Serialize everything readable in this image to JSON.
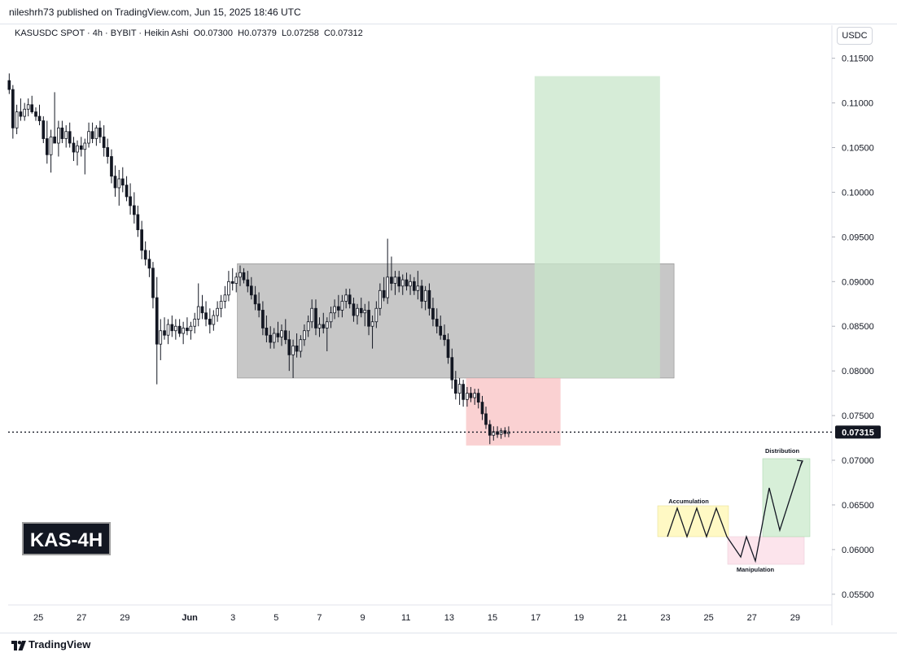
{
  "header": {
    "publisher": "nileshrh73 published on TradingView.com, Jun 15, 2025 18:46 UTC",
    "symbol_line": "KASUSDC SPOT · 4h · BYBIT · Heikin Ashi",
    "ohlc": {
      "open_label": "O",
      "open": "0.07300",
      "high_label": "H",
      "high": "0.07379",
      "low_label": "L",
      "low": "0.07258",
      "close_label": "C",
      "close": "0.07312"
    },
    "currency": "USDC"
  },
  "badge": "KAS-4H",
  "footer": {
    "brand": "TradingView",
    "logo_icon": "tradingview-logo-icon"
  },
  "chart_data": {
    "type": "candlestick",
    "candle_style": "Heikin Ashi",
    "timeframe": "4h",
    "x_tick_labels": [
      "25",
      "27",
      "29",
      "Jun",
      "3",
      "5",
      "7",
      "9",
      "11",
      "13",
      "15",
      "17",
      "19",
      "21",
      "23",
      "25",
      "27",
      "29"
    ],
    "x_tick_days": [
      -7,
      -5,
      -3,
      0,
      2,
      4,
      6,
      8,
      10,
      12,
      14,
      16,
      18,
      20,
      22,
      24,
      26,
      28
    ],
    "x_range_days": [
      -8.4,
      29.7
    ],
    "y_tick_labels": [
      "0.11500",
      "0.11000",
      "0.10500",
      "0.10000",
      "0.09500",
      "0.09000",
      "0.08500",
      "0.08000",
      "0.07500",
      "0.07000",
      "0.06500",
      "0.06000",
      "0.05500"
    ],
    "y_range": [
      0.0538,
      0.1187
    ],
    "last_price": "0.07315",
    "last_price_value": 0.07315,
    "colors": {
      "candle": "#131722",
      "range_box": "#b2b2b2",
      "target_box": "#c8e6c9",
      "stop_box": "#f7b4b6",
      "price_label_bg": "#131722"
    },
    "zones": [
      {
        "kind": "consolidation-range",
        "x_start_day": 2.2,
        "x_end_day": 22.4,
        "y_low": 0.0792,
        "y_high": 0.092
      },
      {
        "kind": "target-zone",
        "x_start_day": 15.95,
        "x_end_day": 21.75,
        "y_low": 0.0792,
        "y_high": 0.113
      },
      {
        "kind": "stop-zone",
        "x_start_day": 12.78,
        "x_end_day": 17.15,
        "y_low": 0.07165,
        "y_high": 0.0792
      }
    ],
    "candles": [
      {
        "t": -8.35,
        "o": 0.1125,
        "h": 0.1133,
        "l": 0.111,
        "c": 0.1115
      },
      {
        "t": -8.18,
        "o": 0.1115,
        "h": 0.112,
        "l": 0.106,
        "c": 0.1072
      },
      {
        "t": -8.0,
        "o": 0.1072,
        "h": 0.1098,
        "l": 0.1065,
        "c": 0.109
      },
      {
        "t": -7.82,
        "o": 0.109,
        "h": 0.1105,
        "l": 0.108,
        "c": 0.1085
      },
      {
        "t": -7.64,
        "o": 0.1085,
        "h": 0.11,
        "l": 0.108,
        "c": 0.1093
      },
      {
        "t": -7.47,
        "o": 0.1093,
        "h": 0.1105,
        "l": 0.1085,
        "c": 0.1098
      },
      {
        "t": -7.3,
        "o": 0.1098,
        "h": 0.1108,
        "l": 0.1088,
        "c": 0.109
      },
      {
        "t": -7.12,
        "o": 0.109,
        "h": 0.1095,
        "l": 0.108,
        "c": 0.1085
      },
      {
        "t": -6.95,
        "o": 0.1085,
        "h": 0.1098,
        "l": 0.1075,
        "c": 0.108
      },
      {
        "t": -6.77,
        "o": 0.108,
        "h": 0.1085,
        "l": 0.1055,
        "c": 0.106
      },
      {
        "t": -6.6,
        "o": 0.106,
        "h": 0.108,
        "l": 0.1032,
        "c": 0.1042
      },
      {
        "t": -6.42,
        "o": 0.1042,
        "h": 0.107,
        "l": 0.1022,
        "c": 0.1062
      },
      {
        "t": -6.25,
        "o": 0.1062,
        "h": 0.1112,
        "l": 0.1055,
        "c": 0.1055
      },
      {
        "t": -6.07,
        "o": 0.1055,
        "h": 0.108,
        "l": 0.104,
        "c": 0.1072
      },
      {
        "t": -5.9,
        "o": 0.1072,
        "h": 0.108,
        "l": 0.1055,
        "c": 0.106
      },
      {
        "t": -5.72,
        "o": 0.106,
        "h": 0.1075,
        "l": 0.105,
        "c": 0.1068
      },
      {
        "t": -5.55,
        "o": 0.1068,
        "h": 0.1078,
        "l": 0.105,
        "c": 0.1055
      },
      {
        "t": -5.37,
        "o": 0.1055,
        "h": 0.1062,
        "l": 0.1035,
        "c": 0.1045
      },
      {
        "t": -5.2,
        "o": 0.1045,
        "h": 0.1058,
        "l": 0.103,
        "c": 0.1052
      },
      {
        "t": -5.02,
        "o": 0.1052,
        "h": 0.1062,
        "l": 0.104,
        "c": 0.1048
      },
      {
        "t": -4.85,
        "o": 0.1048,
        "h": 0.106,
        "l": 0.102,
        "c": 0.1055
      },
      {
        "t": -4.67,
        "o": 0.1055,
        "h": 0.1078,
        "l": 0.105,
        "c": 0.1068
      },
      {
        "t": -4.5,
        "o": 0.1068,
        "h": 0.1078,
        "l": 0.1055,
        "c": 0.106
      },
      {
        "t": -4.32,
        "o": 0.106,
        "h": 0.1075,
        "l": 0.1052,
        "c": 0.1072
      },
      {
        "t": -4.15,
        "o": 0.1072,
        "h": 0.108,
        "l": 0.1055,
        "c": 0.1062
      },
      {
        "t": -3.97,
        "o": 0.1062,
        "h": 0.1075,
        "l": 0.104,
        "c": 0.105
      },
      {
        "t": -3.8,
        "o": 0.105,
        "h": 0.106,
        "l": 0.1032,
        "c": 0.104
      },
      {
        "t": -3.62,
        "o": 0.104,
        "h": 0.1048,
        "l": 0.101,
        "c": 0.1018
      },
      {
        "t": -3.45,
        "o": 0.1018,
        "h": 0.103,
        "l": 0.0995,
        "c": 0.1005
      },
      {
        "t": -3.27,
        "o": 0.1005,
        "h": 0.1025,
        "l": 0.0985,
        "c": 0.1015
      },
      {
        "t": -3.1,
        "o": 0.1015,
        "h": 0.1028,
        "l": 0.1,
        "c": 0.1008
      },
      {
        "t": -2.92,
        "o": 0.1008,
        "h": 0.1018,
        "l": 0.099,
        "c": 0.0995
      },
      {
        "t": -2.75,
        "o": 0.0995,
        "h": 0.101,
        "l": 0.0975,
        "c": 0.0985
      },
      {
        "t": -2.57,
        "o": 0.0985,
        "h": 0.1,
        "l": 0.0965,
        "c": 0.0975
      },
      {
        "t": -2.4,
        "o": 0.0975,
        "h": 0.0985,
        "l": 0.095,
        "c": 0.0958
      },
      {
        "t": -2.22,
        "o": 0.0958,
        "h": 0.0968,
        "l": 0.0925,
        "c": 0.0935
      },
      {
        "t": -2.05,
        "o": 0.0935,
        "h": 0.0945,
        "l": 0.0918,
        "c": 0.0925
      },
      {
        "t": -1.87,
        "o": 0.0925,
        "h": 0.0935,
        "l": 0.0905,
        "c": 0.0915
      },
      {
        "t": -1.7,
        "o": 0.0915,
        "h": 0.0922,
        "l": 0.087,
        "c": 0.0882
      },
      {
        "t": -1.52,
        "o": 0.0882,
        "h": 0.0905,
        "l": 0.0785,
        "c": 0.083
      },
      {
        "t": -1.35,
        "o": 0.083,
        "h": 0.0858,
        "l": 0.0812,
        "c": 0.0845
      },
      {
        "t": -1.17,
        "o": 0.0845,
        "h": 0.086,
        "l": 0.0835,
        "c": 0.084
      },
      {
        "t": -1.0,
        "o": 0.084,
        "h": 0.0858,
        "l": 0.083,
        "c": 0.0852
      },
      {
        "t": -0.82,
        "o": 0.0852,
        "h": 0.0862,
        "l": 0.0838,
        "c": 0.0845
      },
      {
        "t": -0.65,
        "o": 0.0845,
        "h": 0.0858,
        "l": 0.0835,
        "c": 0.085
      },
      {
        "t": -0.47,
        "o": 0.085,
        "h": 0.0858,
        "l": 0.0838,
        "c": 0.0842
      },
      {
        "t": -0.3,
        "o": 0.0842,
        "h": 0.0855,
        "l": 0.083,
        "c": 0.0848
      },
      {
        "t": -0.12,
        "o": 0.0848,
        "h": 0.086,
        "l": 0.084,
        "c": 0.0845
      },
      {
        "t": 0.05,
        "o": 0.0845,
        "h": 0.0855,
        "l": 0.0835,
        "c": 0.085
      },
      {
        "t": 0.23,
        "o": 0.085,
        "h": 0.0865,
        "l": 0.0842,
        "c": 0.0858
      },
      {
        "t": 0.4,
        "o": 0.0858,
        "h": 0.0898,
        "l": 0.085,
        "c": 0.0872
      },
      {
        "t": 0.58,
        "o": 0.0872,
        "h": 0.0885,
        "l": 0.0858,
        "c": 0.0865
      },
      {
        "t": 0.75,
        "o": 0.0865,
        "h": 0.0878,
        "l": 0.085,
        "c": 0.0858
      },
      {
        "t": 0.93,
        "o": 0.0858,
        "h": 0.087,
        "l": 0.0842,
        "c": 0.0852
      },
      {
        "t": 1.1,
        "o": 0.0852,
        "h": 0.0868,
        "l": 0.0845,
        "c": 0.0862
      },
      {
        "t": 1.28,
        "o": 0.0862,
        "h": 0.0878,
        "l": 0.0855,
        "c": 0.087
      },
      {
        "t": 1.45,
        "o": 0.087,
        "h": 0.0885,
        "l": 0.086,
        "c": 0.0878
      },
      {
        "t": 1.63,
        "o": 0.0878,
        "h": 0.0895,
        "l": 0.087,
        "c": 0.0885
      },
      {
        "t": 1.8,
        "o": 0.0885,
        "h": 0.0912,
        "l": 0.0878,
        "c": 0.09
      },
      {
        "t": 1.98,
        "o": 0.09,
        "h": 0.0915,
        "l": 0.089,
        "c": 0.0898
      },
      {
        "t": 2.15,
        "o": 0.0898,
        "h": 0.091,
        "l": 0.0888,
        "c": 0.0905
      },
      {
        "t": 2.33,
        "o": 0.0905,
        "h": 0.0918,
        "l": 0.0895,
        "c": 0.091
      },
      {
        "t": 2.5,
        "o": 0.091,
        "h": 0.0915,
        "l": 0.0898,
        "c": 0.0902
      },
      {
        "t": 2.68,
        "o": 0.0902,
        "h": 0.0912,
        "l": 0.0888,
        "c": 0.0895
      },
      {
        "t": 2.85,
        "o": 0.0895,
        "h": 0.0905,
        "l": 0.088,
        "c": 0.0885
      },
      {
        "t": 3.03,
        "o": 0.0885,
        "h": 0.0895,
        "l": 0.0868,
        "c": 0.0875
      },
      {
        "t": 3.2,
        "o": 0.0875,
        "h": 0.0888,
        "l": 0.086,
        "c": 0.0868
      },
      {
        "t": 3.38,
        "o": 0.0868,
        "h": 0.0878,
        "l": 0.084,
        "c": 0.0848
      },
      {
        "t": 3.55,
        "o": 0.0848,
        "h": 0.0862,
        "l": 0.0832,
        "c": 0.084
      },
      {
        "t": 3.73,
        "o": 0.084,
        "h": 0.085,
        "l": 0.0825,
        "c": 0.0832
      },
      {
        "t": 3.9,
        "o": 0.0832,
        "h": 0.0848,
        "l": 0.0825,
        "c": 0.0842
      },
      {
        "t": 4.08,
        "o": 0.0842,
        "h": 0.0855,
        "l": 0.0832,
        "c": 0.0838
      },
      {
        "t": 4.25,
        "o": 0.0838,
        "h": 0.0852,
        "l": 0.0828,
        "c": 0.0845
      },
      {
        "t": 4.43,
        "o": 0.0845,
        "h": 0.0858,
        "l": 0.083,
        "c": 0.0835
      },
      {
        "t": 4.6,
        "o": 0.0835,
        "h": 0.0845,
        "l": 0.08,
        "c": 0.0818
      },
      {
        "t": 4.78,
        "o": 0.0818,
        "h": 0.0835,
        "l": 0.0792,
        "c": 0.0828
      },
      {
        "t": 4.95,
        "o": 0.0828,
        "h": 0.0842,
        "l": 0.0815,
        "c": 0.0822
      },
      {
        "t": 5.13,
        "o": 0.0822,
        "h": 0.084,
        "l": 0.0815,
        "c": 0.0835
      },
      {
        "t": 5.3,
        "o": 0.0835,
        "h": 0.0852,
        "l": 0.0828,
        "c": 0.0845
      },
      {
        "t": 5.48,
        "o": 0.0845,
        "h": 0.0862,
        "l": 0.0838,
        "c": 0.0855
      },
      {
        "t": 5.65,
        "o": 0.0855,
        "h": 0.088,
        "l": 0.0848,
        "c": 0.087
      },
      {
        "t": 5.83,
        "o": 0.087,
        "h": 0.088,
        "l": 0.084,
        "c": 0.0848
      },
      {
        "t": 6.0,
        "o": 0.0848,
        "h": 0.086,
        "l": 0.0838,
        "c": 0.0852
      },
      {
        "t": 6.18,
        "o": 0.0852,
        "h": 0.0865,
        "l": 0.0842,
        "c": 0.0848
      },
      {
        "t": 6.35,
        "o": 0.0848,
        "h": 0.086,
        "l": 0.0822,
        "c": 0.0855
      },
      {
        "t": 6.53,
        "o": 0.0855,
        "h": 0.0872,
        "l": 0.0848,
        "c": 0.0865
      },
      {
        "t": 6.7,
        "o": 0.0865,
        "h": 0.088,
        "l": 0.0858,
        "c": 0.0872
      },
      {
        "t": 6.88,
        "o": 0.0872,
        "h": 0.0885,
        "l": 0.086,
        "c": 0.0868
      },
      {
        "t": 7.05,
        "o": 0.0868,
        "h": 0.0885,
        "l": 0.086,
        "c": 0.0878
      },
      {
        "t": 7.23,
        "o": 0.0878,
        "h": 0.0892,
        "l": 0.087,
        "c": 0.0885
      },
      {
        "t": 7.4,
        "o": 0.0885,
        "h": 0.0892,
        "l": 0.087,
        "c": 0.0875
      },
      {
        "t": 7.58,
        "o": 0.0875,
        "h": 0.0882,
        "l": 0.0855,
        "c": 0.0862
      },
      {
        "t": 7.75,
        "o": 0.0862,
        "h": 0.0875,
        "l": 0.0852,
        "c": 0.087
      },
      {
        "t": 7.93,
        "o": 0.087,
        "h": 0.0882,
        "l": 0.086,
        "c": 0.0865
      },
      {
        "t": 8.1,
        "o": 0.0865,
        "h": 0.0875,
        "l": 0.085,
        "c": 0.0868
      },
      {
        "t": 8.28,
        "o": 0.0868,
        "h": 0.0878,
        "l": 0.084,
        "c": 0.085
      },
      {
        "t": 8.45,
        "o": 0.085,
        "h": 0.0862,
        "l": 0.0825,
        "c": 0.0855
      },
      {
        "t": 8.63,
        "o": 0.0855,
        "h": 0.0878,
        "l": 0.0848,
        "c": 0.087
      },
      {
        "t": 8.8,
        "o": 0.087,
        "h": 0.0898,
        "l": 0.0862,
        "c": 0.089
      },
      {
        "t": 8.98,
        "o": 0.089,
        "h": 0.0905,
        "l": 0.0878,
        "c": 0.0882
      },
      {
        "t": 9.15,
        "o": 0.0882,
        "h": 0.0948,
        "l": 0.0875,
        "c": 0.0905
      },
      {
        "t": 9.33,
        "o": 0.0905,
        "h": 0.0928,
        "l": 0.089,
        "c": 0.0898
      },
      {
        "t": 9.5,
        "o": 0.0898,
        "h": 0.0912,
        "l": 0.0885,
        "c": 0.0905
      },
      {
        "t": 9.68,
        "o": 0.0905,
        "h": 0.0912,
        "l": 0.0888,
        "c": 0.0895
      },
      {
        "t": 9.85,
        "o": 0.0895,
        "h": 0.0908,
        "l": 0.0885,
        "c": 0.0902
      },
      {
        "t": 10.03,
        "o": 0.0902,
        "h": 0.091,
        "l": 0.089,
        "c": 0.0895
      },
      {
        "t": 10.2,
        "o": 0.0895,
        "h": 0.0908,
        "l": 0.0885,
        "c": 0.09
      },
      {
        "t": 10.38,
        "o": 0.09,
        "h": 0.0905,
        "l": 0.0885,
        "c": 0.089
      },
      {
        "t": 10.55,
        "o": 0.089,
        "h": 0.0912,
        "l": 0.088,
        "c": 0.0895
      },
      {
        "t": 10.73,
        "o": 0.0895,
        "h": 0.0902,
        "l": 0.087,
        "c": 0.0878
      },
      {
        "t": 10.9,
        "o": 0.0878,
        "h": 0.0895,
        "l": 0.0868,
        "c": 0.089
      },
      {
        "t": 11.08,
        "o": 0.089,
        "h": 0.0898,
        "l": 0.0862,
        "c": 0.087
      },
      {
        "t": 11.25,
        "o": 0.087,
        "h": 0.0882,
        "l": 0.085,
        "c": 0.0858
      },
      {
        "t": 11.43,
        "o": 0.0858,
        "h": 0.087,
        "l": 0.0842,
        "c": 0.085
      },
      {
        "t": 11.6,
        "o": 0.085,
        "h": 0.0862,
        "l": 0.0835,
        "c": 0.084
      },
      {
        "t": 11.78,
        "o": 0.084,
        "h": 0.0852,
        "l": 0.0828,
        "c": 0.0835
      },
      {
        "t": 11.95,
        "o": 0.0835,
        "h": 0.0842,
        "l": 0.0808,
        "c": 0.0815
      },
      {
        "t": 12.13,
        "o": 0.0815,
        "h": 0.0825,
        "l": 0.078,
        "c": 0.079
      },
      {
        "t": 12.3,
        "o": 0.079,
        "h": 0.08,
        "l": 0.0768,
        "c": 0.0775
      },
      {
        "t": 12.48,
        "o": 0.0775,
        "h": 0.0792,
        "l": 0.0762,
        "c": 0.0785
      },
      {
        "t": 12.65,
        "o": 0.0785,
        "h": 0.079,
        "l": 0.076,
        "c": 0.0768
      },
      {
        "t": 12.83,
        "o": 0.0768,
        "h": 0.0782,
        "l": 0.076,
        "c": 0.0775
      },
      {
        "t": 13.0,
        "o": 0.0775,
        "h": 0.0782,
        "l": 0.0765,
        "c": 0.077
      },
      {
        "t": 13.18,
        "o": 0.077,
        "h": 0.078,
        "l": 0.0762,
        "c": 0.0775
      },
      {
        "t": 13.35,
        "o": 0.0775,
        "h": 0.078,
        "l": 0.0758,
        "c": 0.0765
      },
      {
        "t": 13.53,
        "o": 0.0765,
        "h": 0.0772,
        "l": 0.0745,
        "c": 0.0752
      },
      {
        "t": 13.7,
        "o": 0.0752,
        "h": 0.076,
        "l": 0.0735,
        "c": 0.074
      },
      {
        "t": 13.88,
        "o": 0.074,
        "h": 0.0745,
        "l": 0.0718,
        "c": 0.0728
      },
      {
        "t": 14.05,
        "o": 0.0728,
        "h": 0.0738,
        "l": 0.0722,
        "c": 0.0732
      },
      {
        "t": 14.23,
        "o": 0.0732,
        "h": 0.0738,
        "l": 0.0725,
        "c": 0.0729
      },
      {
        "t": 14.4,
        "o": 0.0729,
        "h": 0.0736,
        "l": 0.0724,
        "c": 0.0733
      },
      {
        "t": 14.58,
        "o": 0.0733,
        "h": 0.0737,
        "l": 0.0726,
        "c": 0.073
      },
      {
        "t": 14.75,
        "o": 0.073,
        "h": 0.07379,
        "l": 0.07258,
        "c": 0.07312
      }
    ],
    "pattern_inset": {
      "stage_labels": [
        "Accumulation",
        "Manipulation",
        "Distribution"
      ],
      "colors": {
        "accumulation": "#fff9c4",
        "manipulation": "#fce4ec",
        "distribution": "#d7efd8",
        "line": "#131722"
      }
    }
  }
}
